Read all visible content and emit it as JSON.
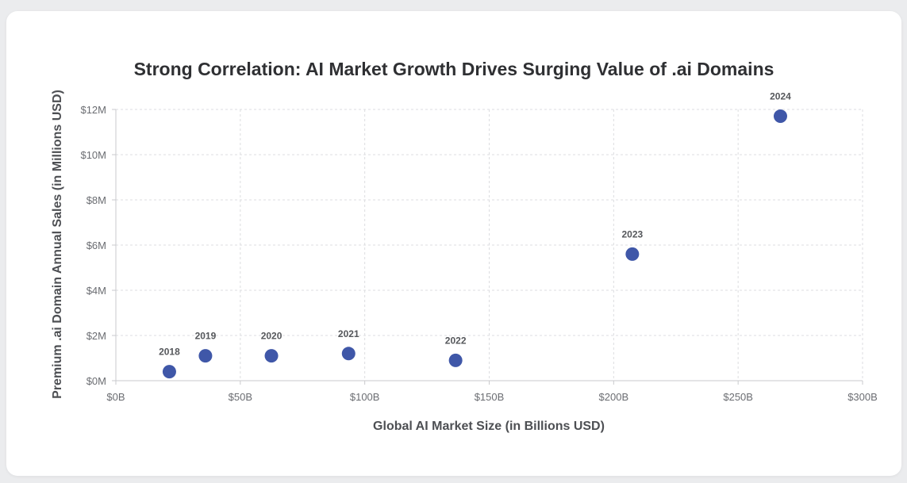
{
  "chart_data": {
    "type": "scatter",
    "title": "Strong Correlation: AI Market Growth Drives Surging Value of .ai Domains",
    "xlabel": "Global AI Market Size (in Billions USD)",
    "ylabel": "Premium .ai Domain Annual Sales (in Millions USD)",
    "xlim": [
      0,
      300
    ],
    "ylim": [
      0,
      12
    ],
    "x_ticks": [
      0,
      50,
      100,
      150,
      200,
      250,
      300
    ],
    "x_tick_labels": [
      "$0B",
      "$50B",
      "$100B",
      "$150B",
      "$200B",
      "$250B",
      "$300B"
    ],
    "y_ticks": [
      0,
      2,
      4,
      6,
      8,
      10,
      12
    ],
    "y_tick_labels": [
      "$0M",
      "$2M",
      "$4M",
      "$6M",
      "$8M",
      "$10M",
      "$12M"
    ],
    "grid": true,
    "marker_color": "#3f57a8",
    "points": [
      {
        "label": "2018",
        "x": 21.5,
        "y": 0.4
      },
      {
        "label": "2019",
        "x": 36,
        "y": 1.1
      },
      {
        "label": "2020",
        "x": 62.5,
        "y": 1.1
      },
      {
        "label": "2021",
        "x": 93.5,
        "y": 1.2
      },
      {
        "label": "2022",
        "x": 136.5,
        "y": 0.9
      },
      {
        "label": "2023",
        "x": 207.5,
        "y": 5.6
      },
      {
        "label": "2024",
        "x": 267,
        "y": 11.7
      }
    ]
  }
}
